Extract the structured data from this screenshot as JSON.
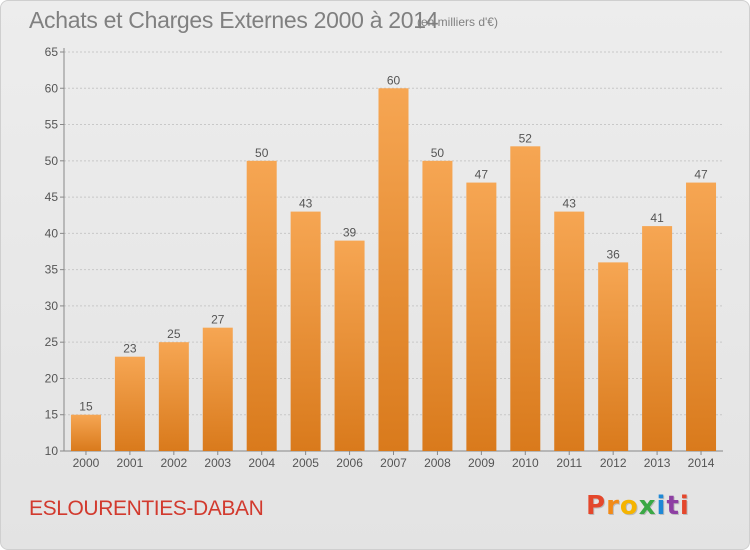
{
  "header": {
    "title": "Achats et Charges Externes 2000 à 2014",
    "unit_note": "(en milliers d'€)"
  },
  "footer": {
    "commune": "ESLOURENTIES-DABAN",
    "logo_letters": [
      "P",
      "r",
      "o",
      "x",
      "i",
      "t",
      "i"
    ],
    "logo_colors": [
      "#e4472c",
      "#f28a18",
      "#f5b400",
      "#3aa845",
      "#1e88d6",
      "#8e3fa3",
      "#e4472c"
    ]
  },
  "colors": {
    "bar_top": "#f6a653",
    "bar_bottom": "#d97a1c",
    "grid": "#c8c8c8",
    "axis_text": "#555555",
    "title_text": "#808080",
    "commune_text": "#d23a2e"
  },
  "chart_data": {
    "type": "bar",
    "categories": [
      "2000",
      "2001",
      "2002",
      "2003",
      "2004",
      "2005",
      "2006",
      "2007",
      "2008",
      "2009",
      "2010",
      "2011",
      "2012",
      "2013",
      "2014"
    ],
    "values": [
      15,
      23,
      25,
      27,
      50,
      43,
      39,
      60,
      50,
      47,
      52,
      43,
      36,
      41,
      47
    ],
    "title": "Achats et Charges Externes 2000 à 2014",
    "ylabel": "",
    "xlabel": "",
    "ylim": [
      10,
      65
    ],
    "yticks": [
      10,
      15,
      20,
      25,
      30,
      35,
      40,
      45,
      50,
      55,
      60,
      65
    ],
    "grid": true,
    "data_labels": true
  }
}
